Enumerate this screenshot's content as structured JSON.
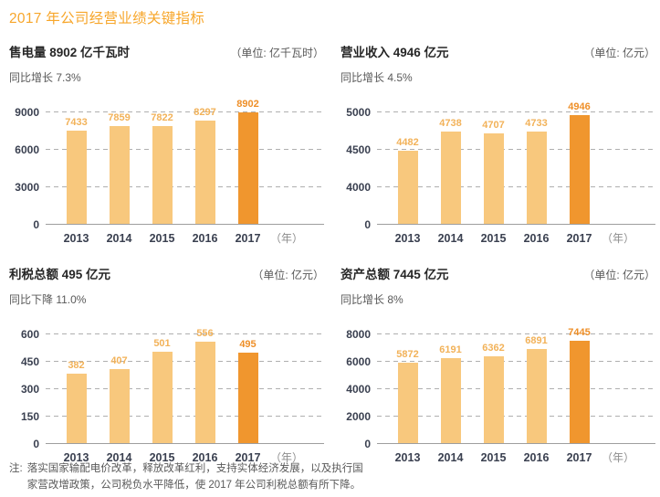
{
  "page": {
    "title": "2017 年公司经营业绩关键指标",
    "note": {
      "prefix": "注:",
      "line1": "落实国家输配电价改革，释放改革红利，支持实体经济发展，以及执行国",
      "line2": "家营改增政策，公司税负水平降低，使 2017 年公司利税总额有所下降。"
    }
  },
  "colors": {
    "accent_orange": "#F7A62A",
    "bar_light": "#F8C87D",
    "bar_highlight": "#F0962E",
    "bar_label_light": "#F2B259",
    "bar_label_highlight": "#EE8F28",
    "axis_text": "#3A4050",
    "muted_text": "#595959",
    "gridline": "#AFAFAF"
  },
  "chart_data": [
    {
      "type": "bar",
      "title": "售电量 8902 亿千瓦时",
      "unit": "（单位: 亿千瓦时）",
      "subtitle": "同比增长 7.3%",
      "categories": [
        "2013",
        "2014",
        "2015",
        "2016",
        "2017"
      ],
      "values": [
        7433,
        7859,
        7822,
        8297,
        8902
      ],
      "yticks": [
        0,
        3000,
        6000,
        9000
      ],
      "ylim": [
        0,
        9000
      ],
      "highlight_index": 4,
      "x_suffix": "（年）",
      "grid": "horizontal-dashed",
      "legend": "none"
    },
    {
      "type": "bar",
      "title": "营业收入 4946 亿元",
      "unit": "（单位: 亿元）",
      "subtitle": "同比增长 4.5%",
      "categories": [
        "2013",
        "2014",
        "2015",
        "2016",
        "2017"
      ],
      "values": [
        4482,
        4738,
        4707,
        4733,
        4946
      ],
      "yticks": [
        0,
        4000,
        4500,
        5000
      ],
      "ylim": [
        0,
        5000
      ],
      "broken_axis": true,
      "highlight_index": 4,
      "x_suffix": "（年）",
      "grid": "horizontal-dashed",
      "legend": "none"
    },
    {
      "type": "bar",
      "title": "利税总额 495 亿元",
      "unit": "（单位: 亿元）",
      "subtitle": "同比下降 11.0%",
      "categories": [
        "2013",
        "2014",
        "2015",
        "2016",
        "2017"
      ],
      "values": [
        382,
        407,
        501,
        556,
        495
      ],
      "yticks": [
        0,
        150,
        300,
        450,
        600
      ],
      "ylim": [
        0,
        600
      ],
      "highlight_index": 4,
      "x_suffix": "（年）",
      "grid": "horizontal-dashed",
      "legend": "none"
    },
    {
      "type": "bar",
      "title": "资产总额 7445 亿元",
      "unit": "（单位: 亿元）",
      "subtitle": "同比增长 8%",
      "categories": [
        "2013",
        "2014",
        "2015",
        "2016",
        "2017"
      ],
      "values": [
        5872,
        6191,
        6362,
        6891,
        7445
      ],
      "yticks": [
        0,
        2000,
        4000,
        6000,
        8000
      ],
      "ylim": [
        0,
        8000
      ],
      "highlight_index": 4,
      "x_suffix": "（年）",
      "grid": "horizontal-dashed",
      "legend": "none"
    }
  ]
}
